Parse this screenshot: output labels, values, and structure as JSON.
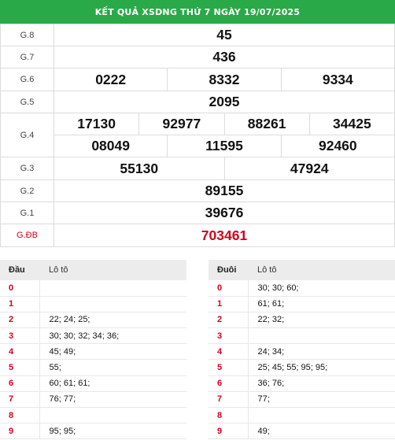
{
  "header": {
    "title": "KẾT QUẢ XSDNG THỨ 7 NGÀY 19/07/2025"
  },
  "prizes": {
    "g8": {
      "label": "G.8",
      "numbers": [
        "45"
      ]
    },
    "g7": {
      "label": "G.7",
      "numbers": [
        "436"
      ]
    },
    "g6": {
      "label": "G.6",
      "numbers": [
        "0222",
        "8332",
        "9334"
      ]
    },
    "g5": {
      "label": "G.5",
      "numbers": [
        "2095"
      ]
    },
    "g4": {
      "label": "G.4",
      "numbers": [
        "17130",
        "92977",
        "88261",
        "34425",
        "08049",
        "11595",
        "92460"
      ]
    },
    "g3": {
      "label": "G.3",
      "numbers": [
        "55130",
        "47924"
      ]
    },
    "g2": {
      "label": "G.2",
      "numbers": [
        "89155"
      ]
    },
    "g1": {
      "label": "G.1",
      "numbers": [
        "39676"
      ]
    },
    "gdb": {
      "label": "G.ĐB",
      "numbers": [
        "703461"
      ]
    }
  },
  "loto_head": {
    "col1": "Đầu",
    "col2": "Lô tô",
    "rows": [
      {
        "key": "0",
        "values": ""
      },
      {
        "key": "1",
        "values": ""
      },
      {
        "key": "2",
        "values": "22; 24; 25;"
      },
      {
        "key": "3",
        "values": "30; 30; 32; 34; 36;"
      },
      {
        "key": "4",
        "values": "45; 49;"
      },
      {
        "key": "5",
        "values": "55;"
      },
      {
        "key": "6",
        "values": "60; 61; 61;"
      },
      {
        "key": "7",
        "values": "76; 77;"
      },
      {
        "key": "8",
        "values": ""
      },
      {
        "key": "9",
        "values": "95; 95;"
      }
    ]
  },
  "loto_tail": {
    "col1": "Đuôi",
    "col2": "Lô tô",
    "rows": [
      {
        "key": "0",
        "values": "30; 30; 60;"
      },
      {
        "key": "1",
        "values": "61; 61;"
      },
      {
        "key": "2",
        "values": "22; 32;"
      },
      {
        "key": "3",
        "values": ""
      },
      {
        "key": "4",
        "values": "24; 34;"
      },
      {
        "key": "5",
        "values": "25; 45; 55; 95; 95;"
      },
      {
        "key": "6",
        "values": "36; 76;"
      },
      {
        "key": "7",
        "values": "77;"
      },
      {
        "key": "8",
        "values": ""
      },
      {
        "key": "9",
        "values": "49;"
      }
    ]
  },
  "colors": {
    "header_bg": "#2aa948",
    "special": "#d0021b"
  }
}
